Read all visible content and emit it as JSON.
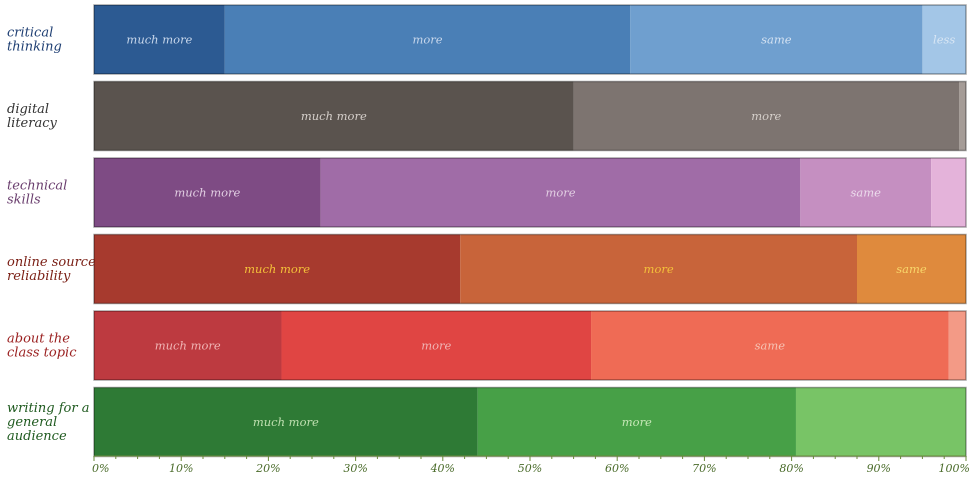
{
  "chart_data": {
    "type": "bar",
    "orientation": "horizontal",
    "stacked": true,
    "x_unit": "percent",
    "xlim": [
      0,
      100
    ],
    "x_ticks": [
      "0%",
      "10%",
      "20%",
      "30%",
      "40%",
      "50%",
      "60%",
      "70%",
      "80%",
      "90%",
      "100%"
    ],
    "grid": false,
    "legend": "none",
    "categories": [
      {
        "label_lines": [
          "critical",
          "thinking"
        ],
        "label_color": "#1f3f73",
        "segments": [
          {
            "label": "much more",
            "value": 15,
            "color": "#2c5a92",
            "text_color": "#c9d8ec"
          },
          {
            "label": "more",
            "value": 46.5,
            "color": "#4a7fb6",
            "text_color": "#c9d8ec"
          },
          {
            "label": "same",
            "value": 33.5,
            "color": "#6f9fcf",
            "text_color": "#d4e2f2"
          },
          {
            "label": "less",
            "value": 5,
            "color": "#a3c6e7",
            "text_color": "#d8e6f4"
          }
        ]
      },
      {
        "label_lines": [
          "digital",
          "literacy"
        ],
        "label_color": "#333333",
        "segments": [
          {
            "label": "much more",
            "value": 55,
            "color": "#5a534e",
            "text_color": "#d6d0cb"
          },
          {
            "label": "more",
            "value": 44.2,
            "color": "#7d7470",
            "text_color": "#d6d0cb"
          },
          {
            "label": "",
            "value": 0.8,
            "color": "#a59c97",
            "text_color": "#d6d0cb"
          }
        ]
      },
      {
        "label_lines": [
          "technical",
          "skills"
        ],
        "label_color": "#6a3e6e",
        "segments": [
          {
            "label": "much more",
            "value": 26,
            "color": "#7e4b84",
            "text_color": "#e2cfe3"
          },
          {
            "label": "more",
            "value": 55,
            "color": "#a06ca7",
            "text_color": "#e2cfe3"
          },
          {
            "label": "same",
            "value": 15,
            "color": "#c58fc1",
            "text_color": "#ecdcec"
          },
          {
            "label": "",
            "value": 4,
            "color": "#e4b3da",
            "text_color": "#ecdcec"
          }
        ]
      },
      {
        "label_lines": [
          "online source",
          "reliability"
        ],
        "label_color": "#7a1e14",
        "segments": [
          {
            "label": "much more",
            "value": 42,
            "color": "#a73a2e",
            "text_color": "#f4c13a"
          },
          {
            "label": "more",
            "value": 45.5,
            "color": "#c8643a",
            "text_color": "#f4c13a"
          },
          {
            "label": "same",
            "value": 12.5,
            "color": "#df8a3d",
            "text_color": "#f8d66a"
          }
        ]
      },
      {
        "label_lines": [
          "about the",
          "class topic"
        ],
        "label_color": "#9a1f1f",
        "segments": [
          {
            "label": "much more",
            "value": 21.5,
            "color": "#bd3a40",
            "text_color": "#f0b5b5"
          },
          {
            "label": "more",
            "value": 35.5,
            "color": "#e04543",
            "text_color": "#f0b5b5"
          },
          {
            "label": "same",
            "value": 41,
            "color": "#ef6b55",
            "text_color": "#f6c4b5"
          },
          {
            "label": "",
            "value": 2,
            "color": "#f39a86",
            "text_color": "#f6c4b5"
          }
        ]
      },
      {
        "label_lines": [
          "writing for a",
          "general",
          "audience"
        ],
        "label_color": "#1f5a1f",
        "segments": [
          {
            "label": "much more",
            "value": 44,
            "color": "#2e7a35",
            "text_color": "#bfe0b0"
          },
          {
            "label": "more",
            "value": 36.5,
            "color": "#47a047",
            "text_color": "#c7e8b8"
          },
          {
            "label": "",
            "value": 19.5,
            "color": "#78c466",
            "text_color": "#d6eecb"
          }
        ]
      }
    ]
  }
}
